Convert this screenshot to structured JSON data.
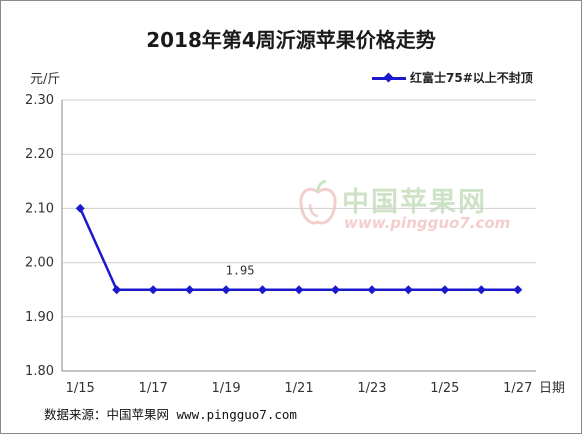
{
  "chart_data": {
    "type": "line",
    "title": "2018年第4周沂源苹果价格走势",
    "ylabel": "元/斤",
    "xlabel": "日期",
    "ylim": [
      1.8,
      2.3
    ],
    "yticks": [
      "2.30",
      "2.20",
      "2.10",
      "2.00",
      "1.90",
      "1.80"
    ],
    "x": [
      "1/15",
      "1/16",
      "1/17",
      "1/18",
      "1/19",
      "1/20",
      "1/21",
      "1/22",
      "1/23",
      "1/24",
      "1/25",
      "1/26",
      "1/27"
    ],
    "xtick_labels": [
      "1/15",
      "1/17",
      "1/19",
      "1/21",
      "1/23",
      "1/25",
      "1/27"
    ],
    "series": [
      {
        "name": "红富士75#以上不封顶",
        "values": [
          2.1,
          1.95,
          1.95,
          1.95,
          1.95,
          1.95,
          1.95,
          1.95,
          1.95,
          1.95,
          1.95,
          1.95,
          1.95
        ],
        "color": "#1a1acc"
      }
    ],
    "annotations": [
      {
        "x": "1/19",
        "text": "1.95"
      }
    ],
    "grid": true,
    "legend_position": "top-right"
  },
  "footer_text": "数据来源：中国苹果网 www.pingguo7.com",
  "watermark": {
    "cn": "中国苹果网",
    "url": "www.pingguo7.com"
  }
}
